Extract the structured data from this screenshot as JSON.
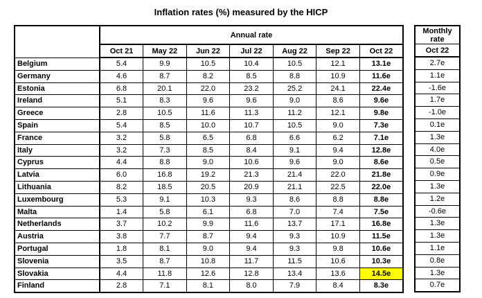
{
  "title": "Inflation rates (%) measured by the HICP",
  "annual": {
    "header": "Annual rate",
    "columns": [
      "Oct 21",
      "May 22",
      "Jun 22",
      "Jul 22",
      "Aug 22",
      "Sep 22",
      "Oct 22"
    ]
  },
  "monthly": {
    "header": "Monthly rate",
    "column": "Oct 22"
  },
  "highlight_color": "#ffff00",
  "rows": [
    {
      "country": "Belgium",
      "annual": [
        "5.4",
        "9.9",
        "10.5",
        "10.4",
        "10.5",
        "12.1",
        "13.1e"
      ],
      "monthly": "2.7e"
    },
    {
      "country": "Germany",
      "annual": [
        "4.6",
        "8.7",
        "8.2",
        "8.5",
        "8.8",
        "10.9",
        "11.6e"
      ],
      "monthly": "1.1e"
    },
    {
      "country": "Estonia",
      "annual": [
        "6.8",
        "20.1",
        "22.0",
        "23.2",
        "25.2",
        "24.1",
        "22.4e"
      ],
      "monthly": "-1.6e"
    },
    {
      "country": "Ireland",
      "annual": [
        "5.1",
        "8.3",
        "9.6",
        "9.6",
        "9.0",
        "8.6",
        "9.6e"
      ],
      "monthly": "1.7e"
    },
    {
      "country": "Greece",
      "annual": [
        "2.8",
        "10.5",
        "11.6",
        "11.3",
        "11.2",
        "12.1",
        "9.8e"
      ],
      "monthly": "-1.0e"
    },
    {
      "country": "Spain",
      "annual": [
        "5.4",
        "8.5",
        "10.0",
        "10.7",
        "10.5",
        "9.0",
        "7.3e"
      ],
      "monthly": "0.1e"
    },
    {
      "country": "France",
      "annual": [
        "3.2",
        "5.8",
        "6.5",
        "6.8",
        "6.6",
        "6.2",
        "7.1e"
      ],
      "monthly": "1.3e"
    },
    {
      "country": "Italy",
      "annual": [
        "3.2",
        "7.3",
        "8.5",
        "8.4",
        "9.1",
        "9.4",
        "12.8e"
      ],
      "monthly": "4.0e"
    },
    {
      "country": "Cyprus",
      "annual": [
        "4.4",
        "8.8",
        "9.0",
        "10.6",
        "9.6",
        "9.0",
        "8.6e"
      ],
      "monthly": "0.5e"
    },
    {
      "country": "Latvia",
      "annual": [
        "6.0",
        "16.8",
        "19.2",
        "21.3",
        "21.4",
        "22.0",
        "21.8e"
      ],
      "monthly": "0.9e"
    },
    {
      "country": "Lithuania",
      "annual": [
        "8.2",
        "18.5",
        "20.5",
        "20.9",
        "21.1",
        "22.5",
        "22.0e"
      ],
      "monthly": "1.3e"
    },
    {
      "country": "Luxembourg",
      "annual": [
        "5.3",
        "9.1",
        "10.3",
        "9.3",
        "8.6",
        "8.8",
        "8.8e"
      ],
      "monthly": "1.2e"
    },
    {
      "country": "Malta",
      "annual": [
        "1.4",
        "5.8",
        "6.1",
        "6.8",
        "7.0",
        "7.4",
        "7.5e"
      ],
      "monthly": "-0.6e"
    },
    {
      "country": "Netherlands",
      "annual": [
        "3.7",
        "10.2",
        "9.9",
        "11.6",
        "13.7",
        "17.1",
        "16.8e"
      ],
      "monthly": "1.3e"
    },
    {
      "country": "Austria",
      "annual": [
        "3.8",
        "7.7",
        "8.7",
        "9.4",
        "9.3",
        "10.9",
        "11.5e"
      ],
      "monthly": "1.3e"
    },
    {
      "country": "Portugal",
      "annual": [
        "1.8",
        "8.1",
        "9.0",
        "9.4",
        "9.3",
        "9.8",
        "10.6e"
      ],
      "monthly": "1.1e"
    },
    {
      "country": "Slovenia",
      "annual": [
        "3.5",
        "8.7",
        "10.8",
        "11.7",
        "11.5",
        "10.6",
        "10.3e"
      ],
      "monthly": "0.8e"
    },
    {
      "country": "Slovakia",
      "annual": [
        "4.4",
        "11.8",
        "12.6",
        "12.8",
        "13.4",
        "13.6",
        "14.5e"
      ],
      "monthly": "1.3e",
      "highlight_col": 6
    },
    {
      "country": "Finland",
      "annual": [
        "2.8",
        "7.1",
        "8.1",
        "8.0",
        "7.9",
        "8.4",
        "8.3e"
      ],
      "monthly": "0.7e"
    }
  ]
}
